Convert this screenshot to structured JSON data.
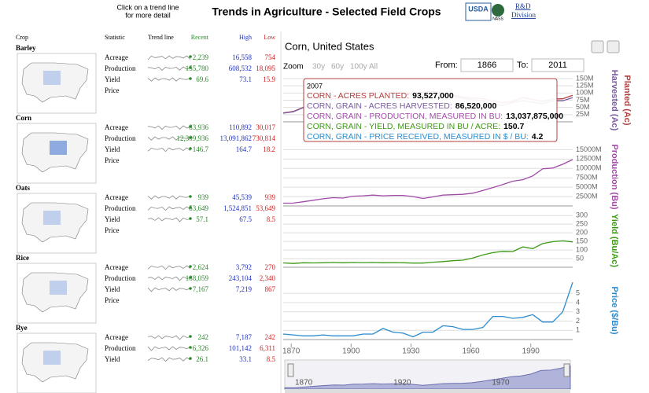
{
  "header": {
    "hint": [
      "Click on a trend line",
      "for more detail"
    ],
    "title": "Trends in Agriculture - Selected Field Crops",
    "logo": "USDA",
    "nass": "NASS",
    "division": [
      "R&D",
      "Division"
    ]
  },
  "table": {
    "columns": [
      "Crop",
      "Statistic",
      "Trend line",
      "Recent",
      "High",
      "Low"
    ],
    "crops": [
      {
        "name": "Barley",
        "rows": [
          [
            "Acreage",
            "2,239",
            "16,558",
            "754"
          ],
          [
            "Production",
            "155,780",
            "608,532",
            "18,095"
          ],
          [
            "Yield",
            "69.6",
            "73.1",
            "15.9"
          ],
          [
            "Price"
          ]
        ]
      },
      {
        "name": "Corn",
        "rows": [
          [
            "Acreage",
            "83,936",
            "110,892",
            "30,017"
          ],
          [
            "Production",
            "12,309,936",
            "13,091,862",
            "730,814"
          ],
          [
            "Yield",
            "146.7",
            "164.7",
            "18.2"
          ],
          [
            "Price"
          ]
        ]
      },
      {
        "name": "Oats",
        "rows": [
          [
            "Acreage",
            "939",
            "45,539",
            "939"
          ],
          [
            "Production",
            "53,649",
            "1,524,851",
            "53,649"
          ],
          [
            "Yield",
            "57.1",
            "67.5",
            "8.5"
          ],
          [
            "Price"
          ]
        ]
      },
      {
        "name": "Rice",
        "rows": [
          [
            "Acreage",
            "2,624",
            "3,792",
            "270"
          ],
          [
            "Production",
            "188,059",
            "243,104",
            "2,340"
          ],
          [
            "Yield",
            "7,167",
            "7,219",
            "867"
          ],
          [
            "Price"
          ]
        ]
      },
      {
        "name": "Rye",
        "rows": [
          [
            "Acreage",
            "242",
            "7,187",
            "242"
          ],
          [
            "Production",
            "6,326",
            "101,142",
            "6,311"
          ],
          [
            "Yield",
            "26.1",
            "33.1",
            "8.5"
          ]
        ]
      }
    ]
  },
  "controls": {
    "title": "Corn, United States",
    "zoom": "Zoom",
    "zoom_options": [
      "30y",
      "60y",
      "100y",
      "All"
    ],
    "from_label": "From:",
    "from": "1866",
    "to_label": "To:",
    "to": "2011"
  },
  "tooltip": {
    "year": "2007",
    "lines": [
      {
        "label": "CORN - ACRES PLANTED:",
        "value": "93,527,000",
        "color": "#b0413e"
      },
      {
        "label": "CORN, GRAIN - ACRES HARVESTED:",
        "value": "86,520,000",
        "color": "#7a5ba0"
      },
      {
        "label": "CORN, GRAIN - PRODUCTION, MEASURED IN BU:",
        "value": "13,037,875,000",
        "color": "#a24aa8"
      },
      {
        "label": "CORN, GRAIN - YIELD, MEASURED IN BU / ACRE:",
        "value": "150.7",
        "color": "#3c9a14"
      },
      {
        "label": "CORN, GRAIN - PRICE RECEIVED, MEASURED IN $ / BU:",
        "value": "4.2",
        "color": "#2a8ccf"
      }
    ]
  },
  "navigator": {
    "ticks": [
      "1870",
      "1920",
      "1970"
    ]
  },
  "chart_data": [
    {
      "type": "line",
      "xlim": [
        1866,
        2011
      ],
      "ylim": [
        0,
        150000000
      ],
      "grid": true,
      "yticks": [
        {
          "value": 25000000,
          "label": "25M"
        },
        {
          "value": 50000000,
          "label": "50M"
        },
        {
          "value": 75000000,
          "label": "75M"
        },
        {
          "value": 100000000,
          "label": "100M"
        },
        {
          "value": 125000000,
          "label": "125M"
        },
        {
          "value": 150000000,
          "label": "150M"
        }
      ],
      "x": [
        1866,
        1871,
        1876,
        1881,
        1886,
        1891,
        1896,
        1901,
        1906,
        1911,
        1916,
        1921,
        1926,
        1931,
        1936,
        1941,
        1946,
        1951,
        1956,
        1961,
        1966,
        1971,
        1976,
        1981,
        1986,
        1991,
        1996,
        2001,
        2006,
        2011
      ],
      "series": [
        {
          "name": "Planted (Ac)",
          "color": "#b0413e",
          "values": [
            31000000,
            36000000,
            50000000,
            62000000,
            72000000,
            80000000,
            84000000,
            92000000,
            98000000,
            102000000,
            104000000,
            102000000,
            100000000,
            101000000,
            103000000,
            105000000,
            100000000,
            93000000,
            86000000,
            82000000,
            80000000,
            72000000,
            66000000,
            71000000,
            84000000,
            78000000,
            71000000,
            79000000,
            80000000,
            92000000
          ]
        },
        {
          "name": "Harvested (Ac)",
          "color": "#7a5ba0",
          "values": [
            30000000,
            35000000,
            49000000,
            61000000,
            71000000,
            79000000,
            83000000,
            91000000,
            97000000,
            101000000,
            103000000,
            100000000,
            97000000,
            98000000,
            99000000,
            99000000,
            96000000,
            88000000,
            81000000,
            76000000,
            73000000,
            62000000,
            57000000,
            67000000,
            73000000,
            68000000,
            63000000,
            73000000,
            73000000,
            84000000
          ]
        }
      ]
    },
    {
      "type": "line",
      "xlim": [
        1866,
        2011
      ],
      "ylim": [
        0,
        15500000000
      ],
      "grid": true,
      "yticks": [
        {
          "value": 2500000000,
          "label": "2500M"
        },
        {
          "value": 5000000000,
          "label": "5000M"
        },
        {
          "value": 7500000000,
          "label": "7500M"
        },
        {
          "value": 10000000000,
          "label": "10000M"
        },
        {
          "value": 12500000000,
          "label": "12500M"
        },
        {
          "value": 15000000000,
          "label": "15000M"
        }
      ],
      "x": [
        1866,
        1871,
        1876,
        1881,
        1886,
        1891,
        1896,
        1901,
        1906,
        1911,
        1916,
        1921,
        1926,
        1931,
        1936,
        1941,
        1946,
        1951,
        1956,
        1961,
        1966,
        1971,
        1976,
        1981,
        1986,
        1991,
        1996,
        2001,
        2006,
        2011
      ],
      "series": [
        {
          "name": "Production (Bu)",
          "color": "#a24aa8",
          "values": [
            730000000,
            760000000,
            1100000000,
            1500000000,
            1900000000,
            2200000000,
            2100000000,
            2600000000,
            2700000000,
            2900000000,
            2700000000,
            2800000000,
            2800000000,
            2500000000,
            2000000000,
            2400000000,
            2900000000,
            3000000000,
            3100000000,
            3400000000,
            4100000000,
            4900000000,
            5700000000,
            6600000000,
            7000000000,
            8000000000,
            9900000000,
            10100000000,
            11100000000,
            12360000000
          ]
        }
      ]
    },
    {
      "type": "line",
      "xlim": [
        1866,
        2011
      ],
      "ylim": [
        0,
        310
      ],
      "grid": true,
      "yticks": [
        50,
        100,
        150,
        200,
        250,
        300
      ],
      "x": [
        1866,
        1871,
        1876,
        1881,
        1886,
        1891,
        1896,
        1901,
        1906,
        1911,
        1916,
        1921,
        1926,
        1931,
        1936,
        1941,
        1946,
        1951,
        1956,
        1961,
        1966,
        1971,
        1976,
        1981,
        1986,
        1991,
        1996,
        2001,
        2006,
        2011
      ],
      "series": [
        {
          "name": "Yield (Bu/Ac)",
          "color": "#3c9a14",
          "values": [
            25,
            22,
            26,
            25,
            26,
            28,
            26,
            28,
            27,
            28,
            26,
            27,
            26,
            24,
            24,
            29,
            33,
            38,
            41,
            54,
            71,
            85,
            92,
            91,
            118,
            108,
            137,
            148,
            153,
            147
          ]
        }
      ]
    },
    {
      "type": "line",
      "xlim": [
        1866,
        2011
      ],
      "ylim": [
        0,
        6.3
      ],
      "grid": true,
      "xticks": [
        1870,
        1900,
        1930,
        1960,
        1990
      ],
      "yticks": [
        1,
        2,
        3,
        4,
        5
      ],
      "x": [
        1866,
        1871,
        1876,
        1881,
        1886,
        1891,
        1896,
        1901,
        1906,
        1911,
        1916,
        1921,
        1926,
        1931,
        1936,
        1941,
        1946,
        1951,
        1956,
        1961,
        1966,
        1971,
        1976,
        1981,
        1986,
        1991,
        1996,
        2001,
        2006,
        2011
      ],
      "series": [
        {
          "name": "Price ($/Bu)",
          "color": "#2a8ccf",
          "values": [
            0.6,
            0.5,
            0.4,
            0.4,
            0.5,
            0.4,
            0.4,
            0.4,
            0.6,
            0.6,
            1.2,
            0.8,
            0.7,
            0.3,
            0.8,
            0.8,
            1.5,
            1.4,
            1.1,
            1.1,
            1.3,
            2.5,
            2.5,
            2.3,
            2.4,
            2.7,
            1.9,
            1.9,
            3.0,
            6.2
          ]
        }
      ]
    }
  ]
}
